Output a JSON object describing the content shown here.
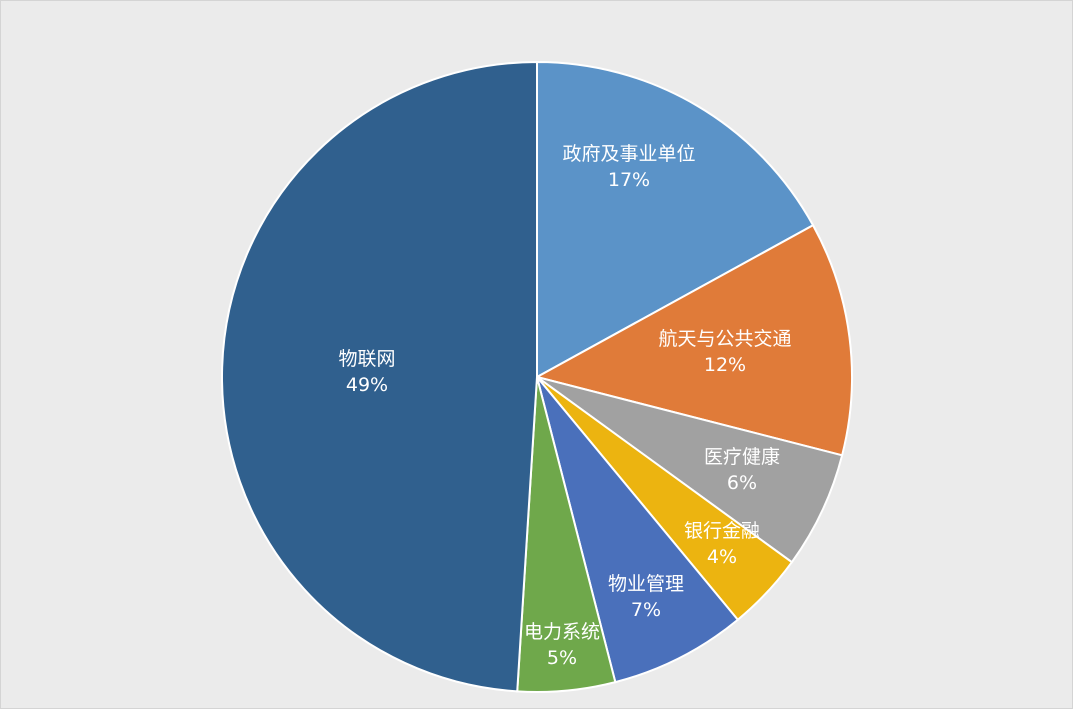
{
  "chart_data": {
    "type": "pie",
    "start_angle": "12 o'clock",
    "direction": "clockwise",
    "legend": "none",
    "slices": [
      {
        "label": "政府及事业单位",
        "value": 17,
        "value_label": "17%",
        "color": "#5b93c8"
      },
      {
        "label": "航天与公共交通",
        "value": 12,
        "value_label": "12%",
        "color": "#e07b39"
      },
      {
        "label": "医疗健康",
        "value": 6,
        "value_label": "6%",
        "color": "#a1a1a1"
      },
      {
        "label": "银行金融",
        "value": 4,
        "value_label": "4%",
        "color": "#ecb410"
      },
      {
        "label": "物业管理",
        "value": 7,
        "value_label": "7%",
        "color": "#4a70bb"
      },
      {
        "label": "电力系统",
        "value": 5,
        "value_label": "5%",
        "color": "#6fa84b"
      },
      {
        "label": "物联网",
        "value": 49,
        "value_label": "49%",
        "color": "#30608e"
      }
    ]
  }
}
